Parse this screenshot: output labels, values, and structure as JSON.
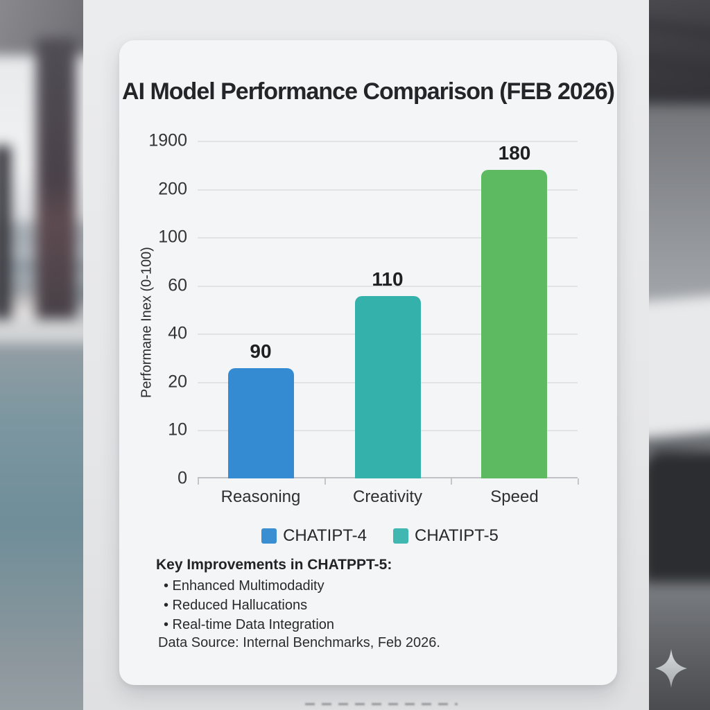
{
  "chart_data": {
    "type": "bar",
    "title": "AI Model Performance Comparison (FEB 2026)",
    "ylabel": "Performane Inex (0-100)",
    "xlabel": "",
    "categories": [
      "Reasoning",
      "Creativity",
      "Speed"
    ],
    "values": [
      90,
      110,
      180
    ],
    "bar_colors": [
      "#348bd1",
      "#35b1ac",
      "#5eba60"
    ],
    "y_tick_labels": [
      "1900",
      "200",
      "100",
      "60",
      "40",
      "20",
      "10",
      "0"
    ],
    "grid": true,
    "legend_position": "bottom",
    "legend": [
      {
        "label": "CHATIPT-4",
        "color": "#3a8fd3"
      },
      {
        "label": "CHATIPT-5",
        "color": "#41b7b2"
      }
    ],
    "bar_height_fractions": [
      0.327,
      0.54,
      0.914
    ]
  },
  "notes": {
    "heading": "Key Improvements in CHATPPT-5:",
    "bullet_char": "•",
    "bullets": [
      "Enhanced Multimodadity",
      "Reduced Hallucations",
      "Real-time Data Integration"
    ],
    "source": "Data Source: Internal Benchmarks, Feb 2026."
  },
  "decor": {
    "sparkle_icon": "four-point-sparkle",
    "sparkle_color_light": "#d6d8da",
    "sparkle_color_dark": "#a9adb0"
  }
}
